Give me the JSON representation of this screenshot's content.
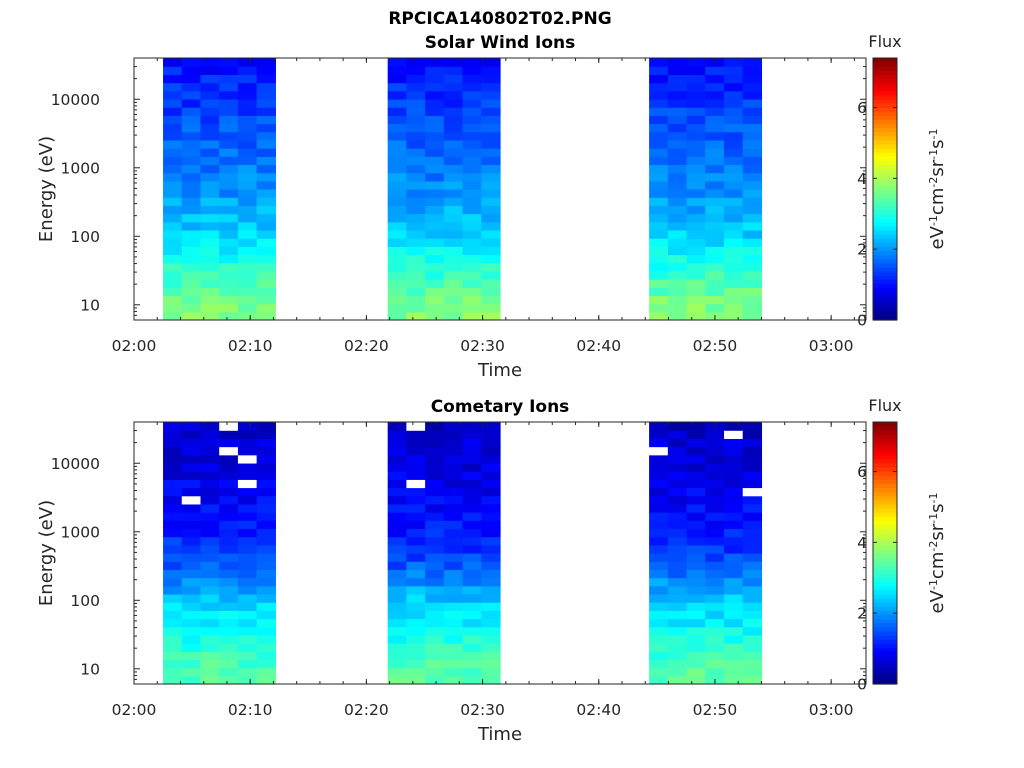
{
  "figure": {
    "filename_title": "RPCICA140802T02.PNG"
  },
  "chart_data": [
    {
      "type": "heatmap",
      "title": "Solar Wind Ions",
      "xlabel": "Time",
      "ylabel": "Energy (eV)",
      "x_range": [
        "02:00",
        "03:03"
      ],
      "x_ticks": [
        "02:00",
        "02:10",
        "02:20",
        "02:30",
        "02:40",
        "02:50",
        "03:00"
      ],
      "y_scale": "log",
      "y_range": [
        6,
        40000
      ],
      "y_ticks": [
        "10",
        "100",
        "1000",
        "10000"
      ],
      "colorbar": {
        "title": "Flux",
        "unit_label": "eV-1cm-2sr-1s-1",
        "range": [
          0,
          7.4
        ],
        "ticks": [
          "0",
          "2",
          "4",
          "6"
        ],
        "colormap": "jet"
      },
      "data_blocks": [
        {
          "start": "02:02:30",
          "end": "02:12:10"
        },
        {
          "start": "02:21:50",
          "end": "02:31:30"
        },
        {
          "start": "02:44:20",
          "end": "02:54:00"
        }
      ],
      "flux_profile_by_energy": [
        {
          "energy_eV": 10,
          "flux": 3.7
        },
        {
          "energy_eV": 30,
          "flux": 3.1
        },
        {
          "energy_eV": 100,
          "flux": 2.5
        },
        {
          "energy_eV": 300,
          "flux": 2.1
        },
        {
          "energy_eV": 1000,
          "flux": 1.8
        },
        {
          "energy_eV": 3000,
          "flux": 1.6
        },
        {
          "energy_eV": 10000,
          "flux": 1.3
        },
        {
          "energy_eV": 40000,
          "flux": 1.0
        }
      ],
      "empty_bins": false
    },
    {
      "type": "heatmap",
      "title": "Cometary Ions",
      "xlabel": "Time",
      "ylabel": "Energy (eV)",
      "x_range": [
        "02:00",
        "03:03"
      ],
      "x_ticks": [
        "02:00",
        "02:10",
        "02:20",
        "02:30",
        "02:40",
        "02:50",
        "03:00"
      ],
      "y_scale": "log",
      "y_range": [
        6,
        40000
      ],
      "y_ticks": [
        "10",
        "100",
        "1000",
        "10000"
      ],
      "colorbar": {
        "title": "Flux",
        "unit_label": "eV-1cm-2sr-1s-1",
        "range": [
          0,
          7.4
        ],
        "ticks": [
          "0",
          "2",
          "4",
          "6"
        ],
        "colormap": "jet"
      },
      "data_blocks": [
        {
          "start": "02:02:30",
          "end": "02:12:10"
        },
        {
          "start": "02:21:50",
          "end": "02:31:30"
        },
        {
          "start": "02:44:20",
          "end": "02:54:00"
        }
      ],
      "flux_profile_by_energy": [
        {
          "energy_eV": 10,
          "flux": 3.4
        },
        {
          "energy_eV": 30,
          "flux": 2.9
        },
        {
          "energy_eV": 100,
          "flux": 2.4
        },
        {
          "energy_eV": 300,
          "flux": 1.6
        },
        {
          "energy_eV": 1000,
          "flux": 1.1
        },
        {
          "energy_eV": 3000,
          "flux": 0.9
        },
        {
          "energy_eV": 10000,
          "flux": 0.7
        },
        {
          "energy_eV": 40000,
          "flux": 0.5
        }
      ],
      "empty_bins": true
    }
  ]
}
